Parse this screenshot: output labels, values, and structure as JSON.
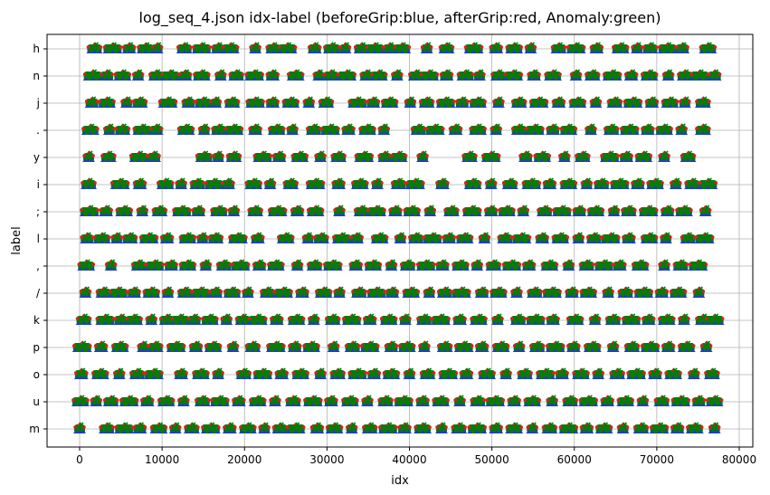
{
  "chart_data": {
    "type": "scatter",
    "title": "log_seq_4.json idx-label (beforeGrip:blue, afterGrip:red, Anomaly:green)",
    "xlabel": "idx",
    "ylabel": "label",
    "xlim": [
      -4000,
      81000
    ],
    "xticks": [
      0,
      10000,
      20000,
      30000,
      40000,
      50000,
      60000,
      70000,
      80000
    ],
    "categories": [
      "m",
      "u",
      "o",
      "p",
      "k",
      "/",
      ",",
      "l",
      ";",
      "i",
      "y",
      ".",
      "j",
      "n",
      "h"
    ],
    "grid": true,
    "legend": "none",
    "series": [
      {
        "name": "beforeGrip",
        "color": "#1f3fbf",
        "marker": "triangle"
      },
      {
        "name": "afterGrip",
        "color": "#d62020",
        "marker": "dot"
      },
      {
        "name": "Anomaly",
        "color": "#0a7a0a",
        "marker": "x"
      }
    ],
    "clusters": {
      "h": [
        1800,
        4000,
        6000,
        8000,
        9400,
        12700,
        14800,
        16800,
        18300,
        21300,
        23500,
        25200,
        28500,
        30600,
        32200,
        34200,
        35800,
        37600,
        39100,
        42100,
        44500,
        47800,
        50500,
        52700,
        54700,
        58100,
        60200,
        62700,
        65600,
        67600,
        69200,
        71300,
        73100,
        76200
      ],
      "n": [
        1600,
        3300,
        5200,
        7100,
        9300,
        11000,
        12800,
        14800,
        17100,
        19000,
        21200,
        23400,
        26200,
        29000,
        30500,
        32400,
        34800,
        36300,
        38500,
        40800,
        42400,
        44500,
        46800,
        48500,
        50800,
        52600,
        55100,
        57400,
        60200,
        62200,
        64600,
        66900,
        69100,
        71400,
        73400,
        75200,
        77000
      ],
      "j": [
        1500,
        3300,
        5700,
        7300,
        10700,
        13200,
        15000,
        16500,
        18500,
        21300,
        23400,
        25600,
        27800,
        29900,
        33700,
        35600,
        37600,
        40100,
        42100,
        44400,
        46400,
        48300,
        50800,
        53300,
        55700,
        58100,
        60400,
        62600,
        64900,
        67100,
        69400,
        71600,
        73400,
        75600
      ],
      ".": [
        1300,
        3600,
        5200,
        7600,
        9300,
        12900,
        15100,
        16900,
        18700,
        21300,
        23900,
        25800,
        28400,
        30400,
        32600,
        34900,
        36900,
        41100,
        43100,
        45600,
        48300,
        50500,
        53300,
        55200,
        57400,
        59300,
        62000,
        64500,
        66700,
        68900,
        70900,
        73000,
        75600
      ],
      "y": [
        1100,
        3500,
        7200,
        9000,
        15100,
        16800,
        18700,
        22200,
        24200,
        26700,
        29200,
        31400,
        34500,
        37000,
        38700,
        41600,
        47300,
        49900,
        54100,
        56100,
        58800,
        61000,
        64300,
        66300,
        68400,
        70900,
        73800
      ],
      "i": [
        1100,
        4900,
        7300,
        10400,
        12300,
        14300,
        16300,
        18000,
        21100,
        23100,
        25600,
        28600,
        31400,
        34000,
        36100,
        38700,
        40700,
        44000,
        47700,
        49900,
        52200,
        54800,
        57000,
        59300,
        61500,
        63300,
        65500,
        67700,
        69800,
        72300,
        74300,
        76200
      ],
      ";": [
        1200,
        3200,
        5400,
        7600,
        9700,
        12400,
        14400,
        16900,
        18700,
        21300,
        24000,
        26400,
        28600,
        31500,
        34200,
        36000,
        38300,
        40300,
        42500,
        45100,
        47600,
        49900,
        51800,
        53800,
        56400,
        58500,
        60600,
        62600,
        64800,
        66600,
        69000,
        71300,
        73300,
        75900
      ],
      "l": [
        900,
        2700,
        4500,
        6100,
        8400,
        10600,
        13100,
        14900,
        16500,
        19200,
        21600,
        25000,
        27700,
        29300,
        31800,
        33600,
        36400,
        38900,
        40800,
        42800,
        44800,
        46700,
        49100,
        51600,
        53600,
        56100,
        58300,
        60500,
        62400,
        64400,
        66600,
        69100,
        71100,
        73800,
        75800
      ],
      ",": [
        800,
        3800,
        7200,
        9100,
        11100,
        13100,
        15300,
        17500,
        19500,
        21800,
        23800,
        26400,
        28500,
        30700,
        33500,
        35600,
        37800,
        39800,
        42000,
        44000,
        46200,
        48200,
        50200,
        52400,
        54500,
        57000,
        59300,
        61500,
        63600,
        65500,
        68000,
        70900,
        72900,
        75000
      ],
      "/": [
        700,
        2900,
        4700,
        6600,
        8700,
        10700,
        12800,
        14700,
        16500,
        18500,
        20400,
        22800,
        24700,
        27000,
        29600,
        31500,
        33900,
        36000,
        37900,
        40200,
        42400,
        44300,
        46300,
        48800,
        50800,
        53000,
        55200,
        57300,
        59700,
        61700,
        64100,
        66200,
        68400,
        70600,
        72600,
        75100
      ],
      "k": [
        500,
        3100,
        5000,
        6600,
        8700,
        10600,
        12200,
        13900,
        15800,
        17800,
        19800,
        21600,
        23900,
        26300,
        28400,
        30700,
        33000,
        35200,
        37500,
        39500,
        41800,
        43800,
        46100,
        48400,
        50700,
        53200,
        55300,
        57400,
        60100,
        62500,
        64700,
        66900,
        69000,
        71200,
        73300,
        75600,
        77000
      ],
      "p": [
        300,
        2600,
        4900,
        7700,
        9200,
        11700,
        14100,
        16200,
        18600,
        21000,
        23800,
        26100,
        28100,
        30800,
        33100,
        35200,
        37800,
        39700,
        41800,
        44300,
        46600,
        48800,
        51100,
        53300,
        55500,
        57700,
        59900,
        62200,
        64700,
        67000,
        69200,
        71400,
        73600,
        76000
      ],
      "o": [
        200,
        2500,
        4800,
        7000,
        9000,
        12300,
        14700,
        16800,
        19900,
        22200,
        24500,
        26800,
        29200,
        31300,
        33700,
        35700,
        37800,
        40000,
        42200,
        44700,
        46900,
        49400,
        51700,
        54000,
        56500,
        58500,
        60800,
        62900,
        65200,
        67500,
        69800,
        72000,
        74500,
        76700
      ],
      "u": [
        100,
        2000,
        3800,
        6000,
        8200,
        10500,
        12600,
        14900,
        17000,
        19300,
        21600,
        23700,
        25900,
        28300,
        30500,
        32800,
        34900,
        37100,
        39300,
        41600,
        43800,
        46100,
        48300,
        50400,
        52700,
        54900,
        57300,
        59500,
        61700,
        64000,
        66200,
        68300,
        70600,
        72900,
        75100,
        77000
      ],
      "m": [
        0,
        3300,
        5400,
        7300,
        9600,
        11600,
        13600,
        15900,
        18200,
        20400,
        22400,
        24300,
        26200,
        28800,
        30900,
        33000,
        35200,
        37400,
        39400,
        41600,
        43900,
        46000,
        48200,
        50500,
        52700,
        54900,
        57000,
        59300,
        61500,
        63600,
        65900,
        68100,
        70300,
        72500,
        74600,
        77000
      ]
    }
  }
}
